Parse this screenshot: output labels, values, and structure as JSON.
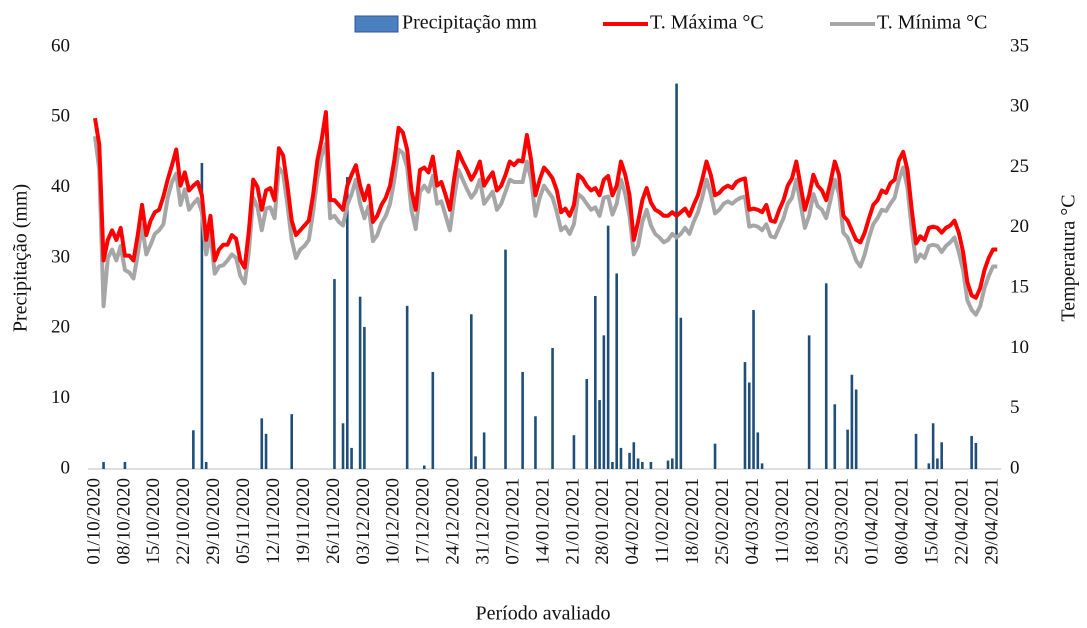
{
  "chart_data": {
    "type": "combo",
    "xlabel": "Período avaliado",
    "ylabel": "Precipitação (mm)",
    "y2label": "Temperatura °C",
    "categories": [
      "01/10/2020",
      null,
      null,
      null,
      null,
      null,
      null,
      "08/10/2020",
      null,
      null,
      null,
      null,
      null,
      null,
      "15/10/2020",
      null,
      null,
      null,
      null,
      null,
      null,
      "22/10/2020",
      null,
      null,
      null,
      null,
      null,
      null,
      "29/10/2020",
      null,
      null,
      null,
      null,
      null,
      null,
      "05/11/2020",
      null,
      null,
      null,
      null,
      null,
      null,
      "12/11/2020",
      null,
      null,
      null,
      null,
      null,
      null,
      "19/11/2020",
      null,
      null,
      null,
      null,
      null,
      null,
      "26/11/2020",
      null,
      null,
      null,
      null,
      null,
      null,
      "03/12/2020",
      null,
      null,
      null,
      null,
      null,
      null,
      "10/12/2020",
      null,
      null,
      null,
      null,
      null,
      null,
      "17/12/2020",
      null,
      null,
      null,
      null,
      null,
      null,
      "24/12/2020",
      null,
      null,
      null,
      null,
      null,
      null,
      "31/12/2020",
      null,
      null,
      null,
      null,
      null,
      null,
      "07/01/2021",
      null,
      null,
      null,
      null,
      null,
      null,
      "14/01/2021",
      null,
      null,
      null,
      null,
      null,
      null,
      "21/01/2021",
      null,
      null,
      null,
      null,
      null,
      null,
      "28/01/2021",
      null,
      null,
      null,
      null,
      null,
      null,
      "04/02/2021",
      null,
      null,
      null,
      null,
      null,
      null,
      "11/02/2021",
      null,
      null,
      null,
      null,
      null,
      null,
      "18/02/2021",
      null,
      null,
      null,
      null,
      null,
      null,
      "25/02/2021",
      null,
      null,
      null,
      null,
      null,
      null,
      "04/03/2021",
      null,
      null,
      null,
      null,
      null,
      null,
      "11/03/2021",
      null,
      null,
      null,
      null,
      null,
      null,
      "18/03/2021",
      null,
      null,
      null,
      null,
      null,
      null,
      "25/03/2021",
      null,
      null,
      null,
      null,
      null,
      null,
      "01/04/2021",
      null,
      null,
      null,
      null,
      null,
      null,
      "08/04/2021",
      null,
      null,
      null,
      null,
      null,
      null,
      "15/04/2021",
      null,
      null,
      null,
      null,
      null,
      null,
      "22/04/2021",
      null,
      null,
      null,
      null,
      null,
      null,
      "29/04/2021",
      null
    ],
    "series": [
      {
        "name": "Precipitação mm",
        "type": "bar",
        "color": "#1f4e79",
        "values": [
          0,
          0,
          1,
          0,
          0,
          0,
          0,
          1,
          0,
          0,
          0,
          0,
          0,
          0,
          0,
          0,
          0,
          0,
          0,
          0,
          0,
          0,
          0,
          5.5,
          0,
          43.5,
          1,
          0,
          0,
          0,
          0,
          0,
          0,
          0,
          0,
          0,
          0,
          0,
          0,
          7.2,
          5,
          0,
          0,
          0,
          0,
          0,
          7.8,
          0,
          0,
          0,
          0,
          0,
          0,
          0,
          0,
          0,
          27,
          0,
          6.5,
          41.5,
          3,
          0,
          24.5,
          20.2,
          0,
          0,
          0,
          0,
          0,
          0,
          0,
          0,
          0,
          23.2,
          0,
          0,
          0,
          0.5,
          0,
          13.8,
          0,
          0,
          0,
          0,
          0,
          0,
          0,
          0,
          22,
          1.8,
          0,
          5.2,
          0,
          0,
          0,
          0,
          31.2,
          0,
          0,
          0,
          13.8,
          0,
          0,
          7.5,
          0,
          0,
          0,
          17.2,
          0,
          0,
          0,
          0,
          4.8,
          0,
          0,
          12.8,
          0,
          24.6,
          9.8,
          19,
          34.6,
          1,
          27.8,
          3,
          0,
          2.3,
          3.8,
          1.5,
          1,
          0,
          1,
          0,
          0,
          0,
          1.2,
          1.5,
          54.8,
          21.5,
          0,
          0,
          0,
          0,
          0,
          0,
          0,
          3.6,
          0,
          0,
          0,
          0,
          0,
          0,
          15.2,
          12.3,
          22.6,
          5.2,
          0.8,
          0,
          0,
          0,
          0,
          0,
          0,
          0,
          0,
          0,
          0,
          19,
          0,
          0,
          0,
          26.4,
          0,
          9.2,
          0,
          0,
          5.6,
          13.4,
          11.3,
          0,
          0,
          0,
          0,
          0,
          0,
          0,
          0,
          0,
          0,
          0,
          0,
          0,
          5,
          0,
          0,
          0.8,
          6.5,
          1.5,
          3.8,
          0,
          0,
          0,
          0,
          0,
          0,
          4.7,
          3.7,
          0,
          0,
          0,
          0,
          0
        ]
      },
      {
        "name": "T. Máxima °C",
        "type": "line",
        "axis": "y2",
        "color": "#ff0000",
        "values": [
          29.1,
          26.9,
          17.3,
          19,
          19.8,
          19,
          20,
          17.7,
          17.7,
          17.3,
          19.4,
          21.9,
          19.4,
          20.6,
          21.3,
          21.5,
          22.6,
          24,
          25.2,
          26.5,
          23.5,
          24.6,
          23.1,
          23.5,
          23.8,
          22.7,
          19,
          21,
          17.3,
          18.2,
          18.6,
          18.6,
          19.4,
          19.1,
          17.3,
          16.7,
          19.8,
          24,
          23.4,
          21.5,
          23.1,
          23.3,
          22.3,
          26.6,
          26,
          23.5,
          20.6,
          19.4,
          19.8,
          20.2,
          20.6,
          22.7,
          25.6,
          27.3,
          29.6,
          22.3,
          22.3,
          21.9,
          21.5,
          23.5,
          24.4,
          25.2,
          23.5,
          22.3,
          23.5,
          20.5,
          21,
          21.9,
          22.5,
          23.5,
          25.6,
          28.3,
          27.9,
          26.5,
          23.1,
          21.5,
          24.8,
          25,
          24.6,
          25.9,
          23.5,
          23.8,
          22.7,
          21.5,
          24.1,
          26.3,
          25.5,
          24.8,
          24,
          24.6,
          25.5,
          23.5,
          24.1,
          24.6,
          23.1,
          23.5,
          24.4,
          25.5,
          25.2,
          25.6,
          25.5,
          27.7,
          25.6,
          22.7,
          24,
          25,
          24.6,
          24.1,
          23.1,
          21.3,
          21.6,
          21,
          21.9,
          24.4,
          24.1,
          23.5,
          23.1,
          23.3,
          22.7,
          24,
          24.3,
          22.7,
          23.5,
          25.5,
          24.4,
          22.7,
          19,
          20.5,
          22.3,
          23.3,
          22.1,
          21.5,
          21.3,
          21,
          21,
          21.3,
          21,
          21.3,
          21.6,
          21,
          21.9,
          22.7,
          24,
          25.5,
          24.4,
          22.7,
          22.9,
          23.3,
          23.5,
          23.3,
          23.8,
          24,
          24.1,
          21.5,
          21.6,
          21.5,
          21.3,
          21.9,
          20.6,
          20.5,
          21.5,
          22.3,
          23.5,
          24.1,
          25.5,
          23.5,
          21.5,
          22.7,
          24.4,
          23.5,
          23.1,
          22.3,
          23.8,
          25.5,
          24.4,
          21,
          20.6,
          19.8,
          19,
          18.8,
          19.6,
          20.8,
          21.9,
          22.3,
          23.1,
          22.9,
          23.7,
          24,
          25.6,
          26.3,
          24.8,
          21.5,
          18.7,
          19.3,
          19,
          20,
          20.1,
          20,
          19.6,
          20,
          20.2,
          20.6,
          19.6,
          18,
          15.5,
          14.4,
          14.2,
          15,
          16.5,
          17.5,
          18.2,
          18.2
        ]
      },
      {
        "name": "T. Mínima °C",
        "type": "line",
        "axis": "y2",
        "color": "#a6a6a6",
        "values": [
          27.6,
          24.8,
          13.5,
          17.5,
          18.2,
          17.3,
          18.5,
          16.5,
          16.3,
          15.8,
          17.8,
          20.2,
          17.8,
          18.6,
          19.5,
          19.8,
          20.3,
          22.5,
          23.8,
          24.5,
          21.9,
          23.2,
          21.5,
          22,
          22.4,
          21.3,
          17.8,
          19.5,
          16.2,
          16.8,
          16.9,
          17.3,
          17.8,
          17.5,
          16,
          15.4,
          18.1,
          22.5,
          21.7,
          19.8,
          21.6,
          21.7,
          20.8,
          25,
          24.5,
          21.9,
          19,
          17.5,
          18.2,
          18.5,
          19,
          21.3,
          24.1,
          26,
          27,
          20.8,
          21,
          20.5,
          20.2,
          21.9,
          22.8,
          24,
          22,
          20.8,
          21.8,
          18.9,
          19.4,
          20.4,
          21,
          22,
          24,
          26.5,
          26.2,
          25,
          21.5,
          19.9,
          23,
          23.5,
          23,
          24.3,
          22,
          22.2,
          21,
          19.8,
          22.5,
          24.8,
          24,
          23.2,
          22.5,
          23,
          24,
          22,
          22.5,
          23,
          21.5,
          22,
          23,
          24,
          23.8,
          23.8,
          23.8,
          25.5,
          24,
          21,
          22.5,
          23.5,
          23,
          22.5,
          21.3,
          19.8,
          20.1,
          19.5,
          20.3,
          22.8,
          22.5,
          22,
          21.5,
          21.7,
          21,
          22.5,
          22.6,
          21.1,
          22,
          24,
          22.8,
          21,
          17.8,
          18.5,
          20.5,
          21.5,
          20.2,
          19.5,
          19.2,
          18.8,
          19,
          19.5,
          19.2,
          19.5,
          20,
          19.5,
          20.5,
          21.3,
          22.5,
          24,
          22.8,
          21.2,
          21.5,
          22,
          22.2,
          22,
          22.3,
          22.5,
          22.6,
          20.1,
          20.2,
          20.1,
          19.8,
          20.3,
          19.3,
          19.2,
          20,
          20.8,
          22,
          22.5,
          24,
          22,
          20,
          21,
          22.8,
          21.8,
          21.5,
          20.8,
          22.3,
          24,
          22.8,
          19.6,
          19.2,
          18.3,
          17.3,
          16.8,
          17.8,
          19.2,
          20.3,
          20.8,
          21.5,
          21.4,
          22,
          22.5,
          24,
          25,
          23.3,
          19.9,
          17.2,
          17.8,
          17.5,
          18.5,
          18.6,
          18.5,
          18,
          18.5,
          18.8,
          19.2,
          18,
          16.5,
          14,
          13.2,
          12.8,
          13.5,
          15,
          16,
          16.8,
          16.8
        ]
      }
    ],
    "ylim": [
      0,
      60
    ],
    "yticks": [
      0,
      10,
      20,
      30,
      40,
      50,
      60
    ],
    "y2lim": [
      0,
      35
    ],
    "y2ticks": [
      0,
      5,
      10,
      15,
      20,
      25,
      30,
      35
    ],
    "grid": false,
    "legend": "top"
  }
}
